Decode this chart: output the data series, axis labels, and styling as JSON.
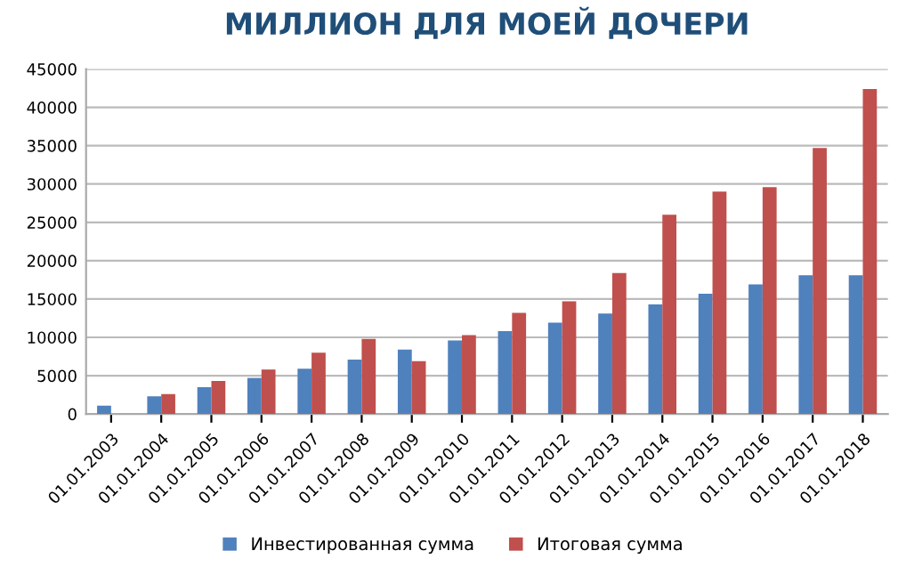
{
  "chart_data": {
    "type": "bar",
    "title": "МИЛЛИОН ДЛЯ МОЕЙ ДОЧЕРИ",
    "categories": [
      "01.01.2003",
      "01.01.2004",
      "01.01.2005",
      "01.01.2006",
      "01.01.2007",
      "01.01.2008",
      "01.01.2009",
      "01.01.2010",
      "01.01.2011",
      "01.01.2012",
      "01.01.2013",
      "01.01.2014",
      "01.01.2015",
      "01.01.2016",
      "01.01.2017",
      "01.01.2018"
    ],
    "series": [
      {
        "name": "Инвестированная сумма",
        "color": "#4f81bd",
        "values": [
          1100,
          2300,
          3500,
          4700,
          5900,
          7100,
          8400,
          9600,
          10800,
          11900,
          13100,
          14300,
          15700,
          16900,
          18100,
          18100
        ]
      },
      {
        "name": "Итоговая сумма",
        "color": "#c0504d",
        "values": [
          null,
          2600,
          4300,
          5800,
          8000,
          9800,
          6900,
          10300,
          13200,
          14700,
          18400,
          26000,
          29000,
          29600,
          34700,
          42400
        ]
      }
    ],
    "ylim": [
      0,
      45000
    ],
    "yticks": [
      0,
      5000,
      10000,
      15000,
      20000,
      25000,
      30000,
      35000,
      40000,
      45000
    ],
    "grid": "y",
    "legend": "bottom"
  }
}
